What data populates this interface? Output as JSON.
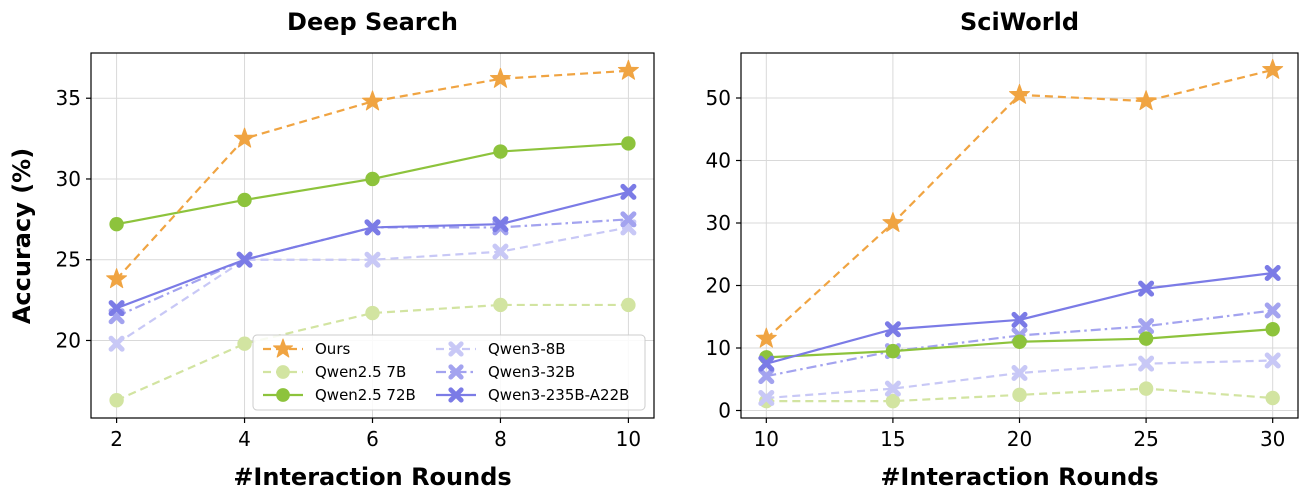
{
  "ylabel": "Accuracy (%)",
  "legend": {
    "entries": [
      {
        "name": "Ours",
        "color": "#F0A442",
        "marker": "star",
        "dash": "dashed",
        "alpha": 1.0
      },
      {
        "name": "Qwen2.5 7B",
        "color": "#D2E4A1",
        "marker": "circle",
        "dash": "dashed",
        "alpha": 1.0
      },
      {
        "name": "Qwen2.5 72B",
        "color": "#8DC33C",
        "marker": "circle",
        "dash": "solid",
        "alpha": 1.0
      },
      {
        "name": "Qwen3-8B",
        "color": "#C8C8F6",
        "marker": "x",
        "dash": "dashed",
        "alpha": 1.0
      },
      {
        "name": "Qwen3-32B",
        "color": "#A3A3EF",
        "marker": "x",
        "dash": "dashdot",
        "alpha": 1.0
      },
      {
        "name": "Qwen3-235B-A22B",
        "color": "#7B7BE6",
        "marker": "x",
        "dash": "solid",
        "alpha": 1.0
      }
    ]
  },
  "chart_data": [
    {
      "type": "line",
      "title": "Deep Search",
      "xlabel": "#Interaction Rounds",
      "ylabel": "Accuracy (%)",
      "x": [
        2,
        4,
        6,
        8,
        10
      ],
      "xlim": [
        1.6,
        10.4
      ],
      "ylim": [
        15.2,
        37.8
      ],
      "xticks": [
        2,
        4,
        6,
        8,
        10
      ],
      "yticks": [
        20,
        25,
        30,
        35
      ],
      "grid": true,
      "legend_position": "lower-right",
      "series": [
        {
          "name": "Ours",
          "values": [
            23.8,
            32.5,
            34.8,
            36.2,
            36.7
          ]
        },
        {
          "name": "Qwen2.5 7B",
          "values": [
            16.3,
            19.8,
            21.7,
            22.2,
            22.2
          ]
        },
        {
          "name": "Qwen2.5 72B",
          "values": [
            27.2,
            28.7,
            30.0,
            31.7,
            32.2
          ]
        },
        {
          "name": "Qwen3-8B",
          "values": [
            19.8,
            25.0,
            25.0,
            25.5,
            27.0
          ]
        },
        {
          "name": "Qwen3-32B",
          "values": [
            21.5,
            25.0,
            27.0,
            27.0,
            27.5
          ]
        },
        {
          "name": "Qwen3-235B-A22B",
          "values": [
            22.0,
            25.0,
            27.0,
            27.2,
            29.2
          ]
        }
      ]
    },
    {
      "type": "line",
      "title": "SciWorld",
      "xlabel": "#Interaction Rounds",
      "ylabel": "",
      "x": [
        10,
        15,
        20,
        25,
        30
      ],
      "xlim": [
        9.0,
        31.0
      ],
      "ylim": [
        -1.2,
        57.2
      ],
      "xticks": [
        10,
        15,
        20,
        25,
        30
      ],
      "yticks": [
        0,
        10,
        20,
        30,
        40,
        50
      ],
      "grid": true,
      "legend_position": "none",
      "series": [
        {
          "name": "Ours",
          "values": [
            11.5,
            30.0,
            50.5,
            49.5,
            54.5
          ]
        },
        {
          "name": "Qwen2.5 7B",
          "values": [
            1.5,
            1.5,
            2.5,
            3.5,
            2.0
          ]
        },
        {
          "name": "Qwen2.5 72B",
          "values": [
            8.5,
            9.5,
            11.0,
            11.5,
            13.0
          ]
        },
        {
          "name": "Qwen3-8B",
          "values": [
            2.0,
            3.5,
            6.0,
            7.5,
            8.0
          ]
        },
        {
          "name": "Qwen3-32B",
          "values": [
            5.5,
            9.5,
            12.0,
            13.5,
            16.0
          ]
        },
        {
          "name": "Qwen3-235B-A22B",
          "values": [
            7.5,
            13.0,
            14.5,
            19.5,
            22.0
          ]
        }
      ]
    }
  ]
}
